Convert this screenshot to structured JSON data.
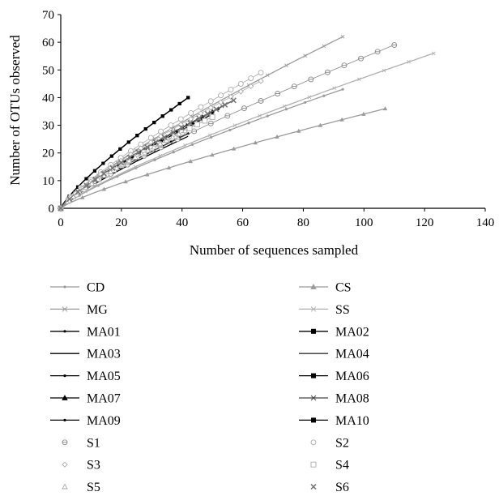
{
  "chart_data": {
    "type": "line",
    "title": "",
    "xlabel": "Number of sequences sampled",
    "ylabel": "Number of OTUs observed",
    "xlim": [
      0,
      140
    ],
    "ylim": [
      0,
      70
    ],
    "xticks": [
      "0",
      "20",
      "40",
      "60",
      "80",
      "100",
      "120",
      "140"
    ],
    "yticks": [
      "0",
      "10",
      "20",
      "30",
      "40",
      "50",
      "60",
      "70"
    ],
    "grid": false,
    "legend_position": "bottom",
    "series": [
      {
        "name": "CD",
        "marker": "dot-line",
        "color": "#9a9a9a",
        "x": [
          0,
          93
        ],
        "y": [
          0,
          43
        ]
      },
      {
        "name": "CS",
        "marker": "triangle-line",
        "color": "#9a9a9a",
        "x": [
          0,
          107
        ],
        "y": [
          0,
          36
        ]
      },
      {
        "name": "MG",
        "marker": "x-line",
        "color": "#9a9a9a",
        "x": [
          0,
          93
        ],
        "y": [
          0,
          62
        ]
      },
      {
        "name": "SS",
        "marker": "x-line",
        "color": "#b0b0b0",
        "x": [
          0,
          123
        ],
        "y": [
          0,
          56
        ]
      },
      {
        "name": "MA01",
        "marker": "dot-line",
        "color": "#000000",
        "x": [
          0,
          42
        ],
        "y": [
          0,
          27
        ]
      },
      {
        "name": "MA02",
        "marker": "square-line",
        "color": "#000000",
        "x": [
          0,
          42
        ],
        "y": [
          0,
          40
        ]
      },
      {
        "name": "MA03",
        "marker": "line",
        "color": "#000000",
        "x": [
          0,
          42
        ],
        "y": [
          0,
          26
        ]
      },
      {
        "name": "MA04",
        "marker": "line",
        "color": "#333333",
        "x": [
          0,
          57
        ],
        "y": [
          0,
          39
        ]
      },
      {
        "name": "MA05",
        "marker": "dot-line",
        "color": "#000000",
        "x": [
          0,
          50
        ],
        "y": [
          0,
          34
        ]
      },
      {
        "name": "MA06",
        "marker": "square-line",
        "color": "#000000",
        "x": [
          0,
          42
        ],
        "y": [
          0,
          40
        ]
      },
      {
        "name": "MA07",
        "marker": "triangle-line",
        "color": "#000000",
        "x": [
          0,
          50
        ],
        "y": [
          0,
          35
        ]
      },
      {
        "name": "MA08",
        "marker": "x-line",
        "color": "#444444",
        "x": [
          0,
          57
        ],
        "y": [
          0,
          39
        ]
      },
      {
        "name": "MA09",
        "marker": "dot-line",
        "color": "#000000",
        "x": [
          0,
          52
        ],
        "y": [
          0,
          36
        ]
      },
      {
        "name": "MA10",
        "marker": "square-line",
        "color": "#000000",
        "x": [
          0,
          42
        ],
        "y": [
          0,
          40
        ]
      },
      {
        "name": "S1",
        "marker": "circle-cross",
        "color": "#888888",
        "x": [
          0,
          110
        ],
        "y": [
          0,
          59
        ]
      },
      {
        "name": "S2",
        "marker": "circle",
        "color": "#aaaaaa",
        "x": [
          0,
          66
        ],
        "y": [
          0,
          49
        ]
      },
      {
        "name": "S3",
        "marker": "diamond",
        "color": "#aaaaaa",
        "x": [
          0,
          66
        ],
        "y": [
          0,
          46
        ]
      },
      {
        "name": "S4",
        "marker": "square",
        "color": "#aaaaaa",
        "x": [
          0,
          50
        ],
        "y": [
          0,
          33
        ]
      },
      {
        "name": "S5",
        "marker": "triangle",
        "color": "#aaaaaa",
        "x": [
          0,
          41
        ],
        "y": [
          0,
          28
        ]
      },
      {
        "name": "S6",
        "marker": "cross",
        "color": "#777777",
        "x": [
          0,
          57
        ],
        "y": [
          0,
          39
        ]
      }
    ]
  }
}
